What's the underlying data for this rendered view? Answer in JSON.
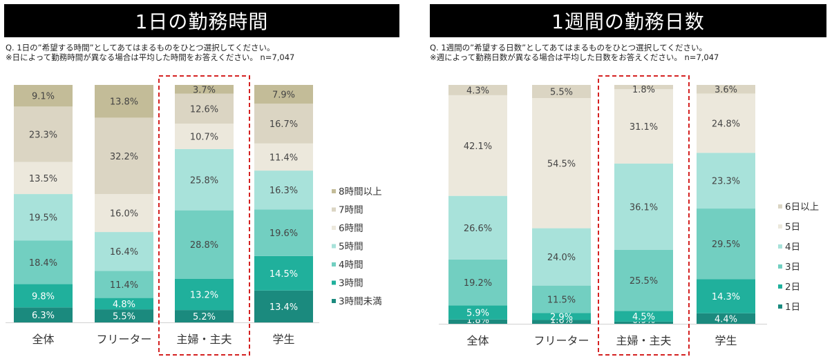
{
  "charts": [
    {
      "title": "1日の勤務時間",
      "question": "Q. 1日の”希望する時間”としてあてはまるものをひとつ選択してください。",
      "note": "※日によって勤務時間が異なる場合は平均した時間をお答えください。 n=7,047"
    },
    {
      "title": "1週間の勤務日数",
      "question": "Q. 1週間の”希望する日数”としてあてはまるものをひとつ選択してください。",
      "note": "※週によって勤務日数が異なる場合は平均した日数をお答えください。 n=7,047"
    }
  ],
  "chart_data": [
    {
      "type": "bar",
      "stacked": true,
      "percent": true,
      "title": "1日の勤務時間",
      "categories": [
        "全体",
        "フリーター",
        "主婦・主夫",
        "学生"
      ],
      "highlighted_category": "主婦・主夫",
      "series": [
        {
          "name": "3時間未満",
          "color": "#1b8a7e",
          "values": [
            6.3,
            5.5,
            5.2,
            13.4
          ]
        },
        {
          "name": "3時間",
          "color": "#20b09c",
          "values": [
            9.8,
            4.8,
            13.2,
            14.5
          ]
        },
        {
          "name": "4時間",
          "color": "#72cfc1",
          "values": [
            18.4,
            11.4,
            28.8,
            19.6
          ]
        },
        {
          "name": "5時間",
          "color": "#a8e2da",
          "values": [
            19.5,
            16.4,
            25.8,
            16.3
          ]
        },
        {
          "name": "6時間",
          "color": "#ece8dc",
          "values": [
            13.5,
            16.0,
            10.7,
            11.4
          ]
        },
        {
          "name": "7時間",
          "color": "#dbd5c3",
          "values": [
            23.3,
            32.2,
            12.6,
            16.7
          ]
        },
        {
          "name": "8時間以上",
          "color": "#c3bc98",
          "values": [
            9.1,
            13.8,
            3.7,
            7.9
          ]
        }
      ],
      "legend_position": "right"
    },
    {
      "type": "bar",
      "stacked": true,
      "percent": true,
      "title": "1週間の勤務日数",
      "categories": [
        "全体",
        "フリーター",
        "主婦・主夫",
        "学生"
      ],
      "highlighted_category": "主婦・主夫",
      "series": [
        {
          "name": "1日",
          "color": "#1b8a7e",
          "values": [
            1.8,
            1.6,
            0.9,
            4.4
          ]
        },
        {
          "name": "2日",
          "color": "#20b09c",
          "values": [
            5.9,
            2.9,
            4.5,
            14.3
          ]
        },
        {
          "name": "3日",
          "color": "#72cfc1",
          "values": [
            19.2,
            11.5,
            25.5,
            29.5
          ]
        },
        {
          "name": "4日",
          "color": "#a8e2da",
          "values": [
            26.6,
            24.0,
            36.1,
            23.3
          ]
        },
        {
          "name": "5日",
          "color": "#ece8dc",
          "values": [
            42.1,
            54.5,
            31.1,
            24.8
          ]
        },
        {
          "name": "6日以上",
          "color": "#dbd5c3",
          "values": [
            4.3,
            5.5,
            1.8,
            3.6
          ]
        }
      ],
      "legend_position": "right"
    }
  ]
}
